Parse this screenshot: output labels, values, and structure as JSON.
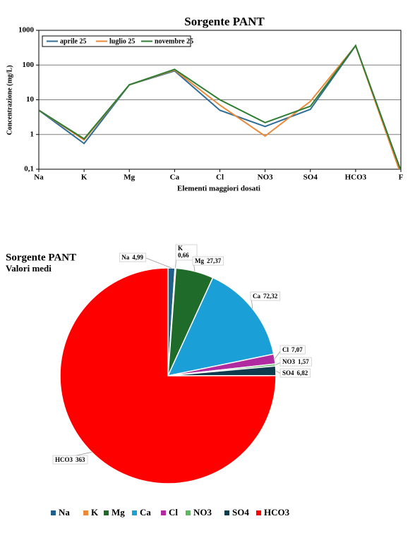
{
  "chart_data": [
    {
      "type": "line",
      "title": "Sorgente PANT",
      "x_label": "Elementi maggiori dosati",
      "y_label": "Concentrazione  (mg/L)",
      "categories": [
        "Na",
        "K",
        "Mg",
        "Ca",
        "Cl",
        "NO3",
        "SO4",
        "HCO3",
        "F"
      ],
      "log_scale": true,
      "grid": true,
      "legend": "top-left",
      "ylim": [
        0.1,
        1000
      ],
      "yticks": [
        {
          "value": 0.1,
          "label": "0,1"
        },
        1,
        10,
        100,
        1000
      ],
      "series": [
        {
          "name": "aprile 25",
          "color": "#2e6d9a",
          "values": [
            5,
            0.55,
            27,
            68,
            5,
            1.7,
            5.3,
            360,
            0.09
          ]
        },
        {
          "name": "luglio 25",
          "color": "#ec8a3c",
          "values": [
            5,
            0.7,
            27,
            72,
            7,
            0.9,
            9,
            360,
            0.07
          ]
        },
        {
          "name": "novembre 25",
          "color": "#2e7d32",
          "values": [
            5,
            0.75,
            27,
            75,
            10,
            2.2,
            6.5,
            365,
            0.09
          ]
        }
      ]
    },
    {
      "type": "pie",
      "title": "Sorgente PANT",
      "subtitle": "Valori medi",
      "categories": [
        "Na",
        "K",
        "Mg",
        "Ca",
        "Cl",
        "NO3",
        "SO4",
        "HCO3"
      ],
      "values": [
        4.99,
        0.66,
        27.37,
        72.32,
        7.07,
        1.57,
        6.82,
        363
      ],
      "value_labels": [
        "4,99",
        "0,66",
        "27,37",
        "72,32",
        "7,07",
        "1,57",
        "6,82",
        "363"
      ],
      "colors": [
        "#1f5f8b",
        "#ec8a3c",
        "#1e6b2a",
        "#1a9fd6",
        "#b02aa0",
        "#5cb85c",
        "#0f3b4f",
        "#ff0000"
      ],
      "legend": "bottom"
    }
  ]
}
